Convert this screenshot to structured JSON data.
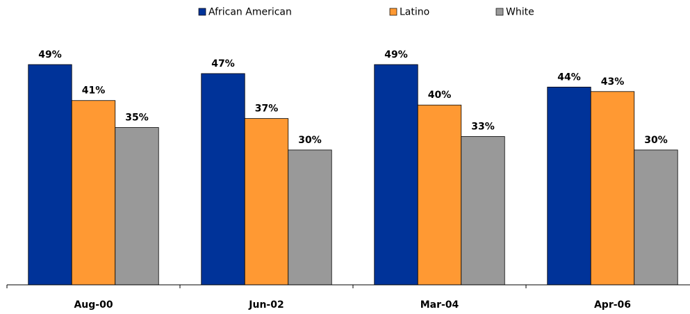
{
  "chart_data": {
    "type": "bar",
    "categories": [
      "Aug-00",
      "Jun-02",
      "Mar-04",
      "Apr-06"
    ],
    "series": [
      {
        "name": "African American",
        "color": "#003399",
        "values": [
          49,
          47,
          49,
          44
        ],
        "value_labels": [
          "49%",
          "47%",
          "49%",
          "44%"
        ]
      },
      {
        "name": "Latino",
        "color": "#ff9933",
        "values": [
          41,
          37,
          40,
          43
        ],
        "value_labels": [
          "41%",
          "37%",
          "40%",
          "43%"
        ]
      },
      {
        "name": "White",
        "color": "#999999",
        "values": [
          35,
          30,
          33,
          30
        ],
        "value_labels": [
          "35%",
          "30%",
          "33%",
          "30%"
        ]
      }
    ],
    "ylim": [
      0,
      50
    ],
    "legend": "top"
  }
}
